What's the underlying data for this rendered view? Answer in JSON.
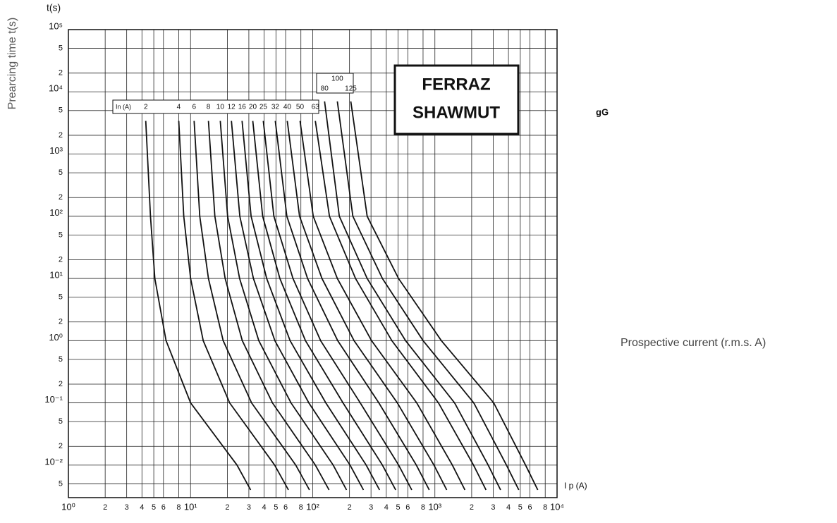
{
  "chart_data": {
    "type": "line",
    "y_label_top": "t(s)",
    "y_label": "Prearcing time t(s)",
    "x_label_axis": "I p (A)",
    "x_label": "Prospective current (r.m.s. A)",
    "fuse_class": "gG",
    "brand": [
      "FERRAZ",
      "SHAWMUT"
    ],
    "legend_title": "In (A)",
    "xscale": "log",
    "yscale": "log",
    "grid": true,
    "xlim": [
      1,
      10000
    ],
    "ylim": [
      0.003,
      100000
    ],
    "xticks": [
      {
        "value": 1,
        "label": "10⁰"
      },
      2,
      3,
      4,
      5,
      6,
      8,
      {
        "value": 10,
        "label": "10¹"
      },
      {
        "value": 20,
        "label": "2"
      },
      {
        "value": 30,
        "label": "3"
      },
      {
        "value": 40,
        "label": "4"
      },
      {
        "value": 50,
        "label": "5"
      },
      {
        "value": 60,
        "label": "6"
      },
      {
        "value": 80,
        "label": "8"
      },
      {
        "value": 100,
        "label": "10²"
      },
      {
        "value": 200,
        "label": "2"
      },
      {
        "value": 300,
        "label": "3"
      },
      {
        "value": 400,
        "label": "4"
      },
      {
        "value": 500,
        "label": "5"
      },
      {
        "value": 600,
        "label": "6"
      },
      {
        "value": 800,
        "label": "8"
      },
      {
        "value": 1000,
        "label": "10³"
      },
      {
        "value": 2000,
        "label": "2"
      },
      {
        "value": 3000,
        "label": "3"
      },
      {
        "value": 4000,
        "label": "4"
      },
      {
        "value": 5000,
        "label": "5"
      },
      {
        "value": 6000,
        "label": "6"
      },
      {
        "value": 8000,
        "label": "8"
      },
      {
        "value": 10000,
        "label": "10⁴"
      }
    ],
    "yticks": [
      {
        "value": 0.005,
        "label": "5"
      },
      {
        "value": 0.01,
        "label": "10⁻²"
      },
      {
        "value": 0.02,
        "label": "2"
      },
      {
        "value": 0.05,
        "label": "5"
      },
      {
        "value": 0.1,
        "label": "10⁻¹"
      },
      {
        "value": 0.2,
        "label": "2"
      },
      {
        "value": 0.5,
        "label": "5"
      },
      {
        "value": 1,
        "label": "10⁰"
      },
      2,
      5,
      {
        "value": 10,
        "label": "10¹"
      },
      {
        "value": 20,
        "label": "2"
      },
      {
        "value": 50,
        "label": "5"
      },
      {
        "value": 100,
        "label": "10²"
      },
      {
        "value": 200,
        "label": "2"
      },
      {
        "value": 500,
        "label": "5"
      },
      {
        "value": 1000,
        "label": "10³"
      },
      {
        "value": 2000,
        "label": "2"
      },
      {
        "value": 5000,
        "label": "5"
      },
      {
        "value": 10000,
        "label": "10⁴"
      },
      {
        "value": 20000,
        "label": "2"
      },
      {
        "value": 50000,
        "label": "5"
      },
      {
        "value": 100000,
        "label": "10⁵"
      }
    ],
    "series": [
      {
        "name": "2",
        "color": "#111",
        "x": [
          4.3,
          4.7,
          5.1,
          6.3,
          10,
          24,
          31
        ],
        "values": [
          3400,
          100,
          10,
          1,
          0.1,
          0.01,
          0.004
        ]
      },
      {
        "name": "4",
        "color": "#111",
        "x": [
          8.0,
          8.8,
          10.0,
          12.7,
          20.9,
          48.8,
          63.2
        ],
        "values": [
          3400,
          100,
          10,
          1,
          0.1,
          0.01,
          0.004
        ]
      },
      {
        "name": "6",
        "color": "#111",
        "x": [
          10.7,
          11.9,
          14.0,
          18.5,
          31.6,
          72.6,
          94.0
        ],
        "values": [
          3400,
          100,
          10,
          1,
          0.1,
          0.01,
          0.004
        ]
      },
      {
        "name": "8",
        "color": "#111",
        "x": [
          14.0,
          15.8,
          19.2,
          26.5,
          46.8,
          105,
          136
        ],
        "values": [
          3400,
          100,
          10,
          1,
          0.1,
          0.01,
          0.004
        ]
      },
      {
        "name": "10",
        "color": "#111",
        "x": [
          17.5,
          20.1,
          25.2,
          36.2,
          66.4,
          147,
          189
        ],
        "values": [
          3400,
          100,
          10,
          1,
          0.1,
          0.01,
          0.004
        ]
      },
      {
        "name": "12",
        "color": "#111",
        "x": [
          21.6,
          25.3,
          32.7,
          49.0,
          92.9,
          202,
          260
        ],
        "values": [
          3400,
          100,
          10,
          1,
          0.1,
          0.01,
          0.004
        ]
      },
      {
        "name": "16",
        "color": "#111",
        "x": [
          26.4,
          31.3,
          42.0,
          65.3,
          128,
          274,
          352
        ],
        "values": [
          3400,
          100,
          10,
          1,
          0.1,
          0.01,
          0.004
        ]
      },
      {
        "name": "20",
        "color": "#111",
        "x": [
          32.3,
          38.9,
          53.8,
          87.2,
          177,
          372,
          477
        ],
        "values": [
          3400,
          100,
          10,
          1,
          0.1,
          0.01,
          0.004
        ]
      },
      {
        "name": "25",
        "color": "#111",
        "x": [
          39.4,
          48.1,
          68.9,
          116,
          245,
          505,
          646
        ],
        "values": [
          3400,
          100,
          10,
          1,
          0.1,
          0.01,
          0.004
        ]
      },
      {
        "name": "32",
        "color": "#111",
        "x": [
          49.4,
          61.4,
          90.8,
          160,
          348,
          705,
          899
        ],
        "values": [
          3400,
          100,
          10,
          1,
          0.1,
          0.01,
          0.004
        ]
      },
      {
        "name": "40",
        "color": "#111",
        "x": [
          61.9,
          78.0,
          119,
          218,
          493,
          982,
          1250
        ],
        "values": [
          3400,
          100,
          10,
          1,
          0.1,
          0.01,
          0.004
        ]
      },
      {
        "name": "50",
        "color": "#111",
        "x": [
          78.7,
          101,
          159,
          303,
          710,
          1390,
          1760
        ],
        "values": [
          3400,
          100,
          10,
          1,
          0.1,
          0.01,
          0.004
        ]
      },
      {
        "name": "63",
        "color": "#111",
        "x": [
          105,
          137,
          224,
          444,
          1070,
          2070,
          2620
        ],
        "values": [
          3400,
          100,
          10,
          1,
          0.1,
          0.01,
          0.004
        ]
      },
      {
        "name": "80",
        "color": "#111",
        "x": [
          125,
          165,
          279,
          576,
          1450,
          2730,
          3450
        ],
        "values": [
          7000,
          100,
          10,
          1,
          0.1,
          0.01,
          0.004
        ]
      },
      {
        "name": "100",
        "color": "#111",
        "x": [
          159,
          213,
          372,
          800,
          2080,
          3850,
          4860
        ],
        "values": [
          7000,
          100,
          10,
          1,
          0.1,
          0.01,
          0.004
        ]
      },
      {
        "name": "125",
        "color": "#111",
        "x": [
          205,
          279,
          504,
          1130,
          3030,
          5520,
          6950
        ],
        "values": [
          7000,
          100,
          10,
          1,
          0.1,
          0.01,
          0.004
        ]
      }
    ]
  }
}
